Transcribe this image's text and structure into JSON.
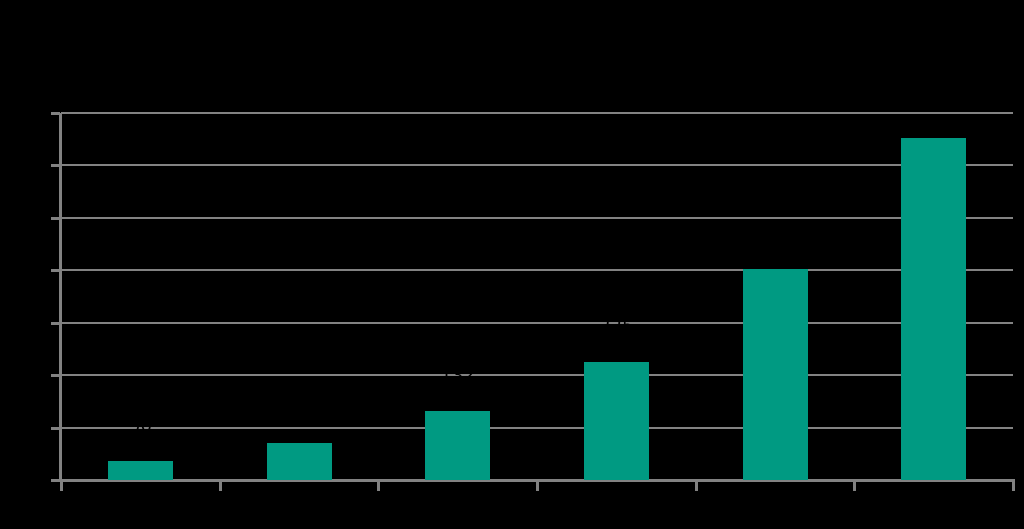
{
  "chart_data": {
    "type": "bar",
    "title": "",
    "xlabel": "",
    "ylabel": "",
    "categories": [
      "",
      "",
      "",
      "",
      "",
      ""
    ],
    "values": [
      36,
      71,
      132,
      225,
      402,
      652
    ],
    "data_labels": [
      "36",
      "71",
      "132",
      "225",
      "402",
      "652"
    ],
    "ylim": [
      0,
      700
    ],
    "gridline_step": 100,
    "grid": true,
    "legend": false,
    "colors": {
      "bar": "#009A82",
      "grid": "#828282",
      "axis": "#828282",
      "text": "#000000",
      "background": "#000000"
    }
  }
}
